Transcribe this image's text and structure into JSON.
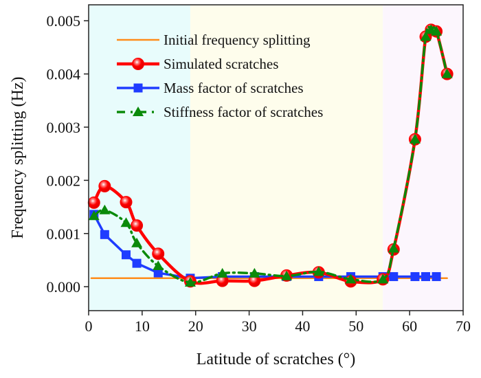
{
  "chart_data": {
    "type": "line",
    "title": "",
    "xlabel": "Latitude of scratches (°)",
    "ylabel": "Frequency splitting (Hz)",
    "xlim": [
      0,
      70
    ],
    "ylim": [
      -0.00045,
      0.0053
    ],
    "xticks": [
      0,
      10,
      20,
      30,
      40,
      50,
      60,
      70
    ],
    "xtick_labels": [
      "0",
      "10",
      "20",
      "30",
      "40",
      "50",
      "60",
      "70"
    ],
    "yticks": [
      0.0,
      0.001,
      0.002,
      0.003,
      0.004,
      0.005
    ],
    "ytick_labels": [
      "0.000",
      "0.001",
      "0.002",
      "0.003",
      "0.004",
      "0.005"
    ],
    "grid": false,
    "legend_position": "top-left",
    "background_regions": [
      {
        "x_from": 0,
        "x_to": 19,
        "color": "#e8fcfc"
      },
      {
        "x_from": 19,
        "x_to": 55,
        "color": "#fefdec"
      },
      {
        "x_from": 55,
        "x_to": 70,
        "color": "#fcf6fd"
      }
    ],
    "series": [
      {
        "name": "Initial frequency splitting",
        "color": "#ff8c1a",
        "style": "solid",
        "marker": "none",
        "x": [
          0.5,
          67
        ],
        "values": [
          0.00016,
          0.00016
        ]
      },
      {
        "name": "Simulated scratches",
        "color": "#ff0000",
        "style": "solid",
        "marker": "circle",
        "x": [
          1,
          3,
          7,
          9,
          13,
          19,
          25,
          31,
          37,
          43,
          49,
          55,
          57,
          61,
          63,
          64,
          65,
          67
        ],
        "values": [
          0.00158,
          0.00189,
          0.00159,
          0.00115,
          0.00062,
          0.0001,
          0.00011,
          0.00011,
          0.00021,
          0.00027,
          0.0001,
          0.00014,
          0.0007,
          0.00277,
          0.0047,
          0.00483,
          0.0048,
          0.004
        ]
      },
      {
        "name": "Mass factor of scratches",
        "color": "#1f3cff",
        "style": "solid",
        "marker": "square",
        "x": [
          1,
          3,
          7,
          9,
          13,
          19,
          25,
          31,
          37,
          43,
          49,
          55,
          57,
          61,
          63,
          65
        ],
        "values": [
          0.00136,
          0.00098,
          0.0006,
          0.00044,
          0.00026,
          0.00016,
          0.00019,
          0.00019,
          0.00019,
          0.00019,
          0.00019,
          0.00019,
          0.00019,
          0.00019,
          0.00019,
          0.00019
        ]
      },
      {
        "name": "Stiffness factor of scratches",
        "color": "#0a8a0a",
        "style": "dash-dot",
        "marker": "triangle",
        "x": [
          1,
          3,
          7,
          9,
          13,
          19,
          25,
          31,
          37,
          43,
          49,
          55,
          57,
          61,
          63,
          64,
          65,
          67
        ],
        "values": [
          0.00133,
          0.00144,
          0.0012,
          0.00082,
          0.00039,
          8e-05,
          0.00025,
          0.00025,
          0.0002,
          0.00028,
          0.00014,
          0.00014,
          0.00072,
          0.00277,
          0.0047,
          0.00483,
          0.0048,
          0.004
        ]
      }
    ]
  }
}
